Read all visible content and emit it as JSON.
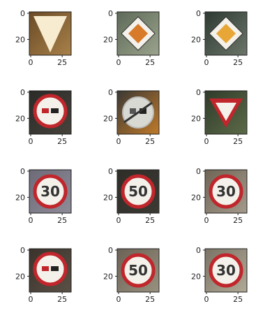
{
  "chart_data": {
    "type": "image_grid",
    "rows": 4,
    "cols": 3,
    "axes": {
      "xticks": [
        "0",
        "25"
      ],
      "yticks": [
        "0",
        "20"
      ]
    },
    "panels": [
      {
        "sign": "yield-upside-down-white",
        "text": ""
      },
      {
        "sign": "priority-road",
        "text": ""
      },
      {
        "sign": "priority-road",
        "text": ""
      },
      {
        "sign": "no-overtaking",
        "text": ""
      },
      {
        "sign": "end-no-overtaking",
        "text": ""
      },
      {
        "sign": "yield",
        "text": ""
      },
      {
        "sign": "speed-limit",
        "text": "30"
      },
      {
        "sign": "speed-limit",
        "text": "50"
      },
      {
        "sign": "speed-limit",
        "text": "30"
      },
      {
        "sign": "no-overtaking",
        "text": ""
      },
      {
        "sign": "speed-limit",
        "text": "50"
      },
      {
        "sign": "speed-limit",
        "text": "30"
      }
    ],
    "colors": {
      "red": "#c0262b",
      "yellow": "#e8a636",
      "orange": "#d77a2a",
      "white": "#f4f1ea",
      "dark": "#222222",
      "axis": "#222222"
    }
  }
}
